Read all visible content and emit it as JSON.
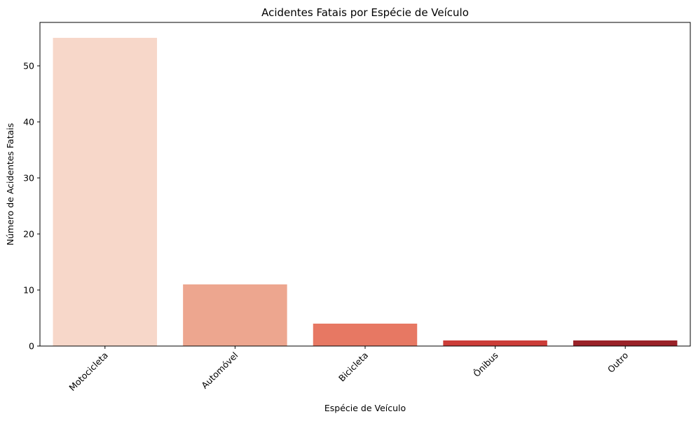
{
  "chart_data": {
    "type": "bar",
    "title": "Acidentes Fatais por Espécie de Veículo",
    "xlabel": "Espécie de Veículo",
    "ylabel": "Número de Acidentes Fatais",
    "categories": [
      "Motocicleta",
      "Automóvel",
      "Bicicleta",
      "Ônibus",
      "Outro"
    ],
    "values": [
      55,
      11,
      4,
      1,
      1
    ],
    "colors": [
      "#f7d7c9",
      "#eda68f",
      "#e77863",
      "#cc3d38",
      "#9a2228"
    ],
    "ylim": [
      0,
      57.75
    ],
    "yticks": [
      0,
      10,
      20,
      30,
      40,
      50
    ],
    "grid": false,
    "legend": "none"
  }
}
